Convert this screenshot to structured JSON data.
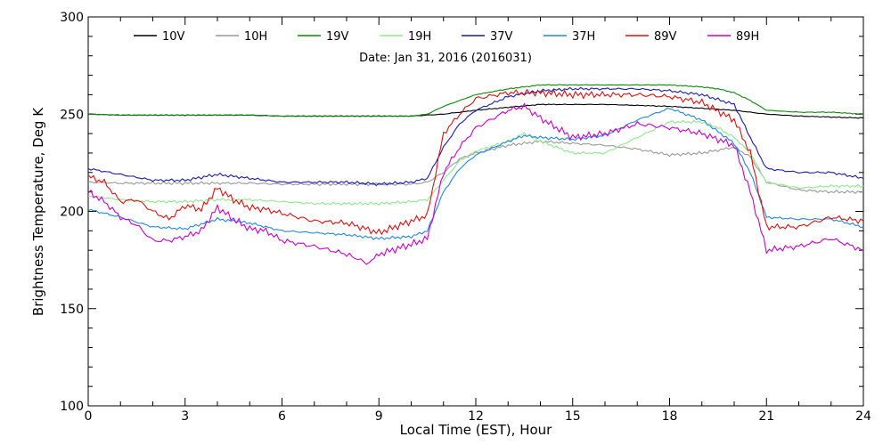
{
  "chart_data": {
    "type": "line",
    "subtitle": "Date: Jan 31, 2016 (2016031)",
    "xlabel": "Local Time (EST), Hour",
    "ylabel": "Brightness Temperature, Deg K",
    "xlim": [
      0,
      24
    ],
    "ylim": [
      100,
      300
    ],
    "x_ticks": [
      0,
      3,
      6,
      9,
      12,
      15,
      18,
      21,
      24
    ],
    "y_ticks": [
      100,
      150,
      200,
      250,
      300
    ],
    "grid": false,
    "legend_position": "top",
    "series": [
      {
        "name": "10V",
        "color": "#000000",
        "x": [
          0,
          1,
          2,
          3,
          4,
          5,
          6,
          7,
          8,
          9,
          10,
          10.5,
          11,
          12,
          13,
          14,
          15,
          16,
          17,
          18,
          19,
          20,
          20.5,
          21,
          22,
          23,
          24
        ],
        "y": [
          250,
          249.5,
          249.5,
          249.5,
          249.5,
          249.5,
          249,
          249,
          249,
          249,
          249,
          249.5,
          250,
          252,
          253.5,
          255,
          255,
          255,
          254.5,
          254,
          253,
          252,
          251,
          250,
          249,
          248.5,
          248
        ]
      },
      {
        "name": "10H",
        "color": "#999999",
        "x": [
          0,
          1,
          2,
          3,
          4,
          5,
          6,
          7,
          8,
          9,
          10,
          10.5,
          11,
          11.5,
          12,
          13,
          14,
          15,
          16,
          17,
          18,
          19,
          20,
          20.5,
          21,
          22,
          23,
          24
        ],
        "y": [
          215,
          214.5,
          214.5,
          214.5,
          214.5,
          214.5,
          214,
          214,
          214,
          214,
          214,
          215,
          220,
          227,
          230,
          234,
          236,
          235,
          234,
          232,
          229,
          230,
          233,
          228,
          215,
          211,
          210,
          210
        ]
      },
      {
        "name": "19V",
        "color": "#0a8a0a",
        "x": [
          0,
          1,
          2,
          3,
          4,
          5,
          6,
          7,
          8,
          9,
          10,
          10.5,
          11,
          12,
          13,
          14,
          15,
          16,
          17,
          18,
          19,
          19.5,
          20,
          20.5,
          21,
          22,
          23,
          24
        ],
        "y": [
          250,
          249.5,
          249.5,
          249.5,
          249.5,
          249.5,
          249,
          249,
          249,
          249,
          249,
          250,
          254,
          260,
          263,
          265,
          265,
          265,
          265,
          265,
          264,
          263,
          261,
          257,
          252,
          251,
          251,
          250
        ]
      },
      {
        "name": "19H",
        "color": "#8ee88e",
        "x": [
          0,
          1,
          2,
          3,
          4,
          5,
          6,
          7,
          8,
          9,
          10,
          10.5,
          11,
          11.5,
          12,
          13,
          13.5,
          14,
          15,
          16,
          17,
          18,
          19,
          19.5,
          20,
          20.5,
          21,
          22,
          23,
          24
        ],
        "y": [
          208,
          206,
          205,
          205,
          206,
          206,
          205,
          204,
          204,
          204,
          205,
          206,
          216,
          226,
          231,
          236,
          240,
          236,
          230,
          230,
          238,
          246,
          246,
          243,
          238,
          230,
          215,
          212,
          213,
          213
        ]
      },
      {
        "name": "37V",
        "color": "#1a1ab0",
        "x": [
          0,
          1,
          2,
          3,
          4,
          5,
          6,
          7,
          8,
          9,
          10,
          10.5,
          11,
          11.5,
          12,
          13,
          14,
          15,
          16,
          17,
          18,
          19,
          20,
          20.5,
          21,
          22,
          23,
          24
        ],
        "y": [
          222,
          219,
          216,
          216,
          219,
          217,
          215,
          215,
          215,
          214,
          215,
          217,
          233,
          245,
          252,
          259,
          262,
          263,
          263,
          263,
          262,
          260,
          255,
          238,
          222,
          220,
          220,
          217
        ]
      },
      {
        "name": "37H",
        "color": "#2288dd",
        "x": [
          0,
          1,
          2,
          3,
          4,
          5,
          6,
          7,
          8,
          9,
          10,
          10.5,
          11,
          11.5,
          12,
          13,
          13.5,
          14,
          15,
          16,
          17,
          18,
          19,
          20,
          20.5,
          21,
          22,
          23,
          24
        ],
        "y": [
          201,
          197,
          192,
          191,
          196,
          194,
          190,
          189,
          188,
          186,
          187,
          190,
          210,
          222,
          229,
          236,
          239,
          238,
          237,
          239,
          247,
          253,
          247,
          235,
          220,
          197,
          196,
          196,
          192
        ]
      },
      {
        "name": "89V",
        "color": "#dd1111",
        "x": [
          0,
          0.5,
          1,
          1.5,
          2,
          2.5,
          3,
          3.5,
          4,
          4.5,
          5,
          5.5,
          6,
          7,
          8,
          9,
          10,
          10.5,
          11,
          11.5,
          12,
          13,
          14,
          15,
          16,
          17,
          18,
          19,
          20,
          20.5,
          21,
          22,
          23,
          24
        ],
        "y": [
          218,
          215,
          205,
          206,
          200,
          196,
          203,
          201,
          212,
          206,
          202,
          201,
          199,
          195,
          194,
          189,
          195,
          198,
          240,
          250,
          258,
          261,
          261,
          260,
          260,
          260,
          259,
          256,
          247,
          230,
          192,
          192,
          197,
          195
        ]
      },
      {
        "name": "89H",
        "color": "#cc00cc",
        "x": [
          0,
          0.5,
          1,
          1.5,
          2,
          2.5,
          3,
          3.5,
          4,
          4.5,
          5,
          5.5,
          6,
          7,
          8,
          8.7,
          9,
          10,
          10.5,
          11,
          11.5,
          12,
          13,
          13.5,
          14,
          15,
          16,
          17,
          18,
          19,
          20,
          20.5,
          21,
          22,
          23,
          24
        ],
        "y": [
          210,
          205,
          197,
          193,
          185,
          185,
          187,
          190,
          202,
          196,
          191,
          190,
          185,
          182,
          178,
          173,
          178,
          183,
          186,
          220,
          233,
          243,
          252,
          254,
          248,
          238,
          240,
          245,
          243,
          240,
          234,
          210,
          180,
          182,
          186,
          180
        ]
      }
    ]
  }
}
